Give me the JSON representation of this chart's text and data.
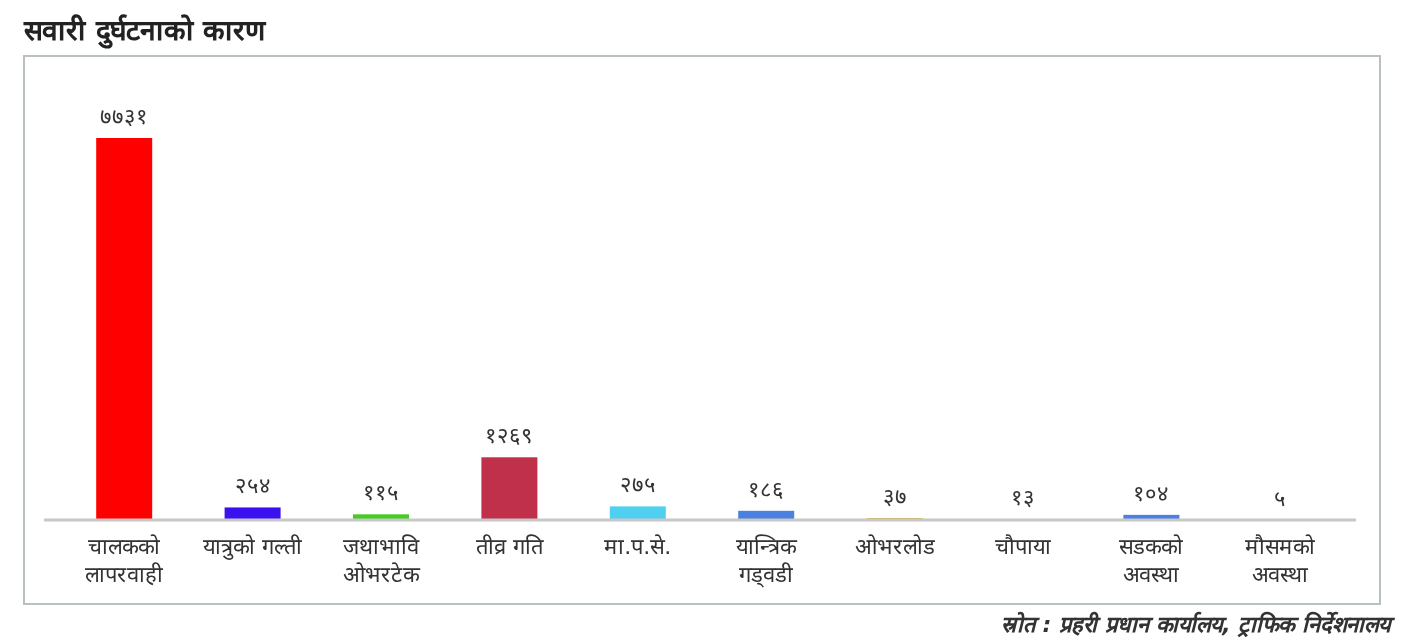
{
  "chart_data": {
    "type": "bar",
    "title": "सवारी दुर्घटनाको कारण",
    "categories": [
      "चालकको\nलापरवाही",
      "यात्रुको गल्ती",
      "जथाभावि\nओभरटेक",
      "तीव्र गति",
      "मा.प.से.",
      "यान्त्रिक\nगड्वडी",
      "ओभरलोड",
      "चौपाया",
      "सडकको\nअवस्था",
      "मौसमको\nअवस्था"
    ],
    "values": [
      7731,
      254,
      115,
      1269,
      275,
      186,
      37,
      13,
      104,
      5
    ],
    "value_labels": [
      "७७३१",
      "२५४",
      "११५",
      "१२६९",
      "२७५",
      "१८६",
      "३७",
      "१३",
      "१०४",
      "५"
    ],
    "colors": [
      "#ff0000",
      "#3a10f0",
      "#44cc22",
      "#c0304a",
      "#50d0f0",
      "#4a80e0",
      "#d4a020",
      "#a0a0a0",
      "#4a80e0",
      "#c0c0c0"
    ],
    "annotations": [
      "स्रोत : प्रहरी प्रधान कार्यालय, ट्राफिक निर्देशनालय"
    ]
  }
}
